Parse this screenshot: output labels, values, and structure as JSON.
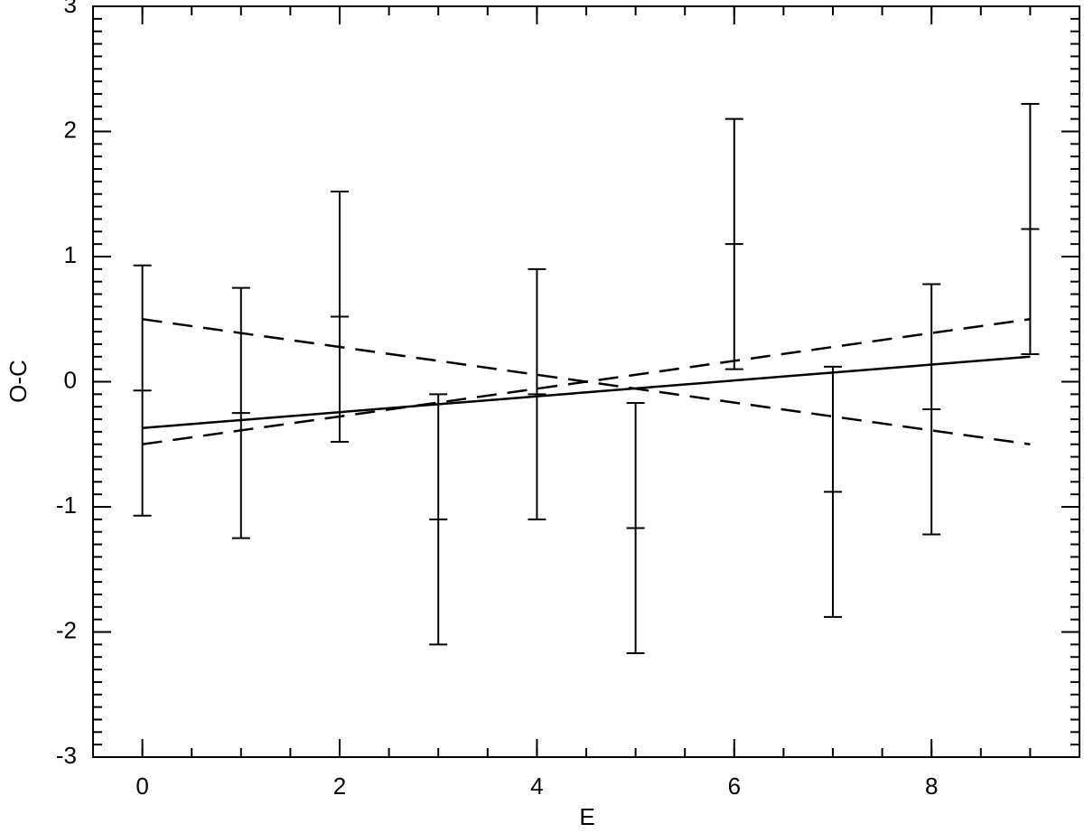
{
  "chart_data": {
    "type": "scatter",
    "x_label": "E",
    "y_label": "O-C",
    "x": [
      0,
      1,
      2,
      3,
      4,
      5,
      6,
      7,
      8,
      9
    ],
    "values": [
      -0.07,
      -0.25,
      0.52,
      -1.1,
      -0.1,
      -1.17,
      1.1,
      -0.88,
      -0.22,
      1.22
    ],
    "errors": [
      1,
      1,
      1,
      1,
      1,
      1,
      1,
      1,
      1,
      1
    ],
    "color": "#000000",
    "lines": [
      {
        "style": "solid",
        "x": [
          0,
          9
        ],
        "y": [
          -0.37,
          0.2
        ]
      },
      {
        "style": "dashed",
        "x": [
          0,
          9
        ],
        "y": [
          0.5,
          -0.5
        ]
      },
      {
        "style": "dashed",
        "x": [
          0,
          9
        ],
        "y": [
          -0.5,
          0.5
        ]
      }
    ],
    "xlim": [
      -0.5,
      9.5
    ],
    "ylim": [
      -3,
      3
    ],
    "xticks": [
      0,
      2,
      4,
      6,
      8
    ],
    "yticks": [
      -3,
      -2,
      -1,
      0,
      1,
      2,
      3
    ]
  }
}
